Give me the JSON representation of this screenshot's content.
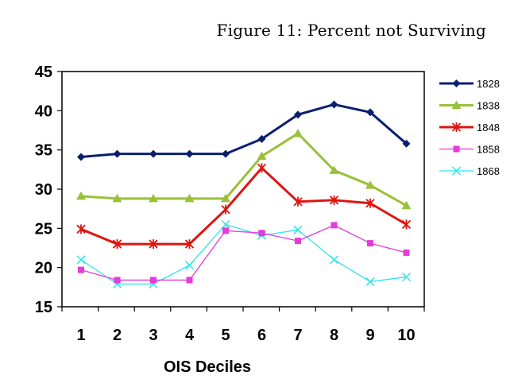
{
  "figure_title": "Figure 11: Percent not Surviving",
  "chart_data": {
    "type": "line",
    "title": "",
    "xlabel": "OIS Deciles",
    "ylabel": "",
    "categories": [
      "1",
      "2",
      "3",
      "4",
      "5",
      "6",
      "7",
      "8",
      "9",
      "10"
    ],
    "ylim": [
      15,
      45
    ],
    "yticks": [
      15,
      20,
      25,
      30,
      35,
      40,
      45
    ],
    "grid": false,
    "legend_position": "right",
    "series": [
      {
        "name": "1828",
        "color": "#0a1f6e",
        "marker": "diamond",
        "width": 3,
        "values": [
          34.1,
          34.5,
          34.5,
          34.5,
          34.5,
          36.4,
          39.5,
          40.8,
          39.8,
          35.8
        ]
      },
      {
        "name": "1838",
        "color": "#99c13a",
        "marker": "triangle",
        "width": 3,
        "values": [
          29.1,
          28.8,
          28.8,
          28.8,
          28.8,
          34.2,
          37.1,
          32.4,
          30.5,
          27.9
        ]
      },
      {
        "name": "1848",
        "color": "#e0140f",
        "marker": "star",
        "width": 3,
        "values": [
          24.9,
          23.0,
          23.0,
          23.0,
          27.4,
          32.7,
          28.4,
          28.6,
          28.2,
          25.5
        ]
      },
      {
        "name": "1858",
        "color": "#e63ad9",
        "marker": "square",
        "width": 1.3,
        "values": [
          19.7,
          18.4,
          18.4,
          18.4,
          24.7,
          24.4,
          23.4,
          25.4,
          23.1,
          21.9
        ]
      },
      {
        "name": "1868",
        "color": "#2fe5ec",
        "marker": "x",
        "width": 1.3,
        "values": [
          21.0,
          17.9,
          17.9,
          20.3,
          25.5,
          24.1,
          24.8,
          21.0,
          18.2,
          18.8
        ]
      }
    ]
  }
}
